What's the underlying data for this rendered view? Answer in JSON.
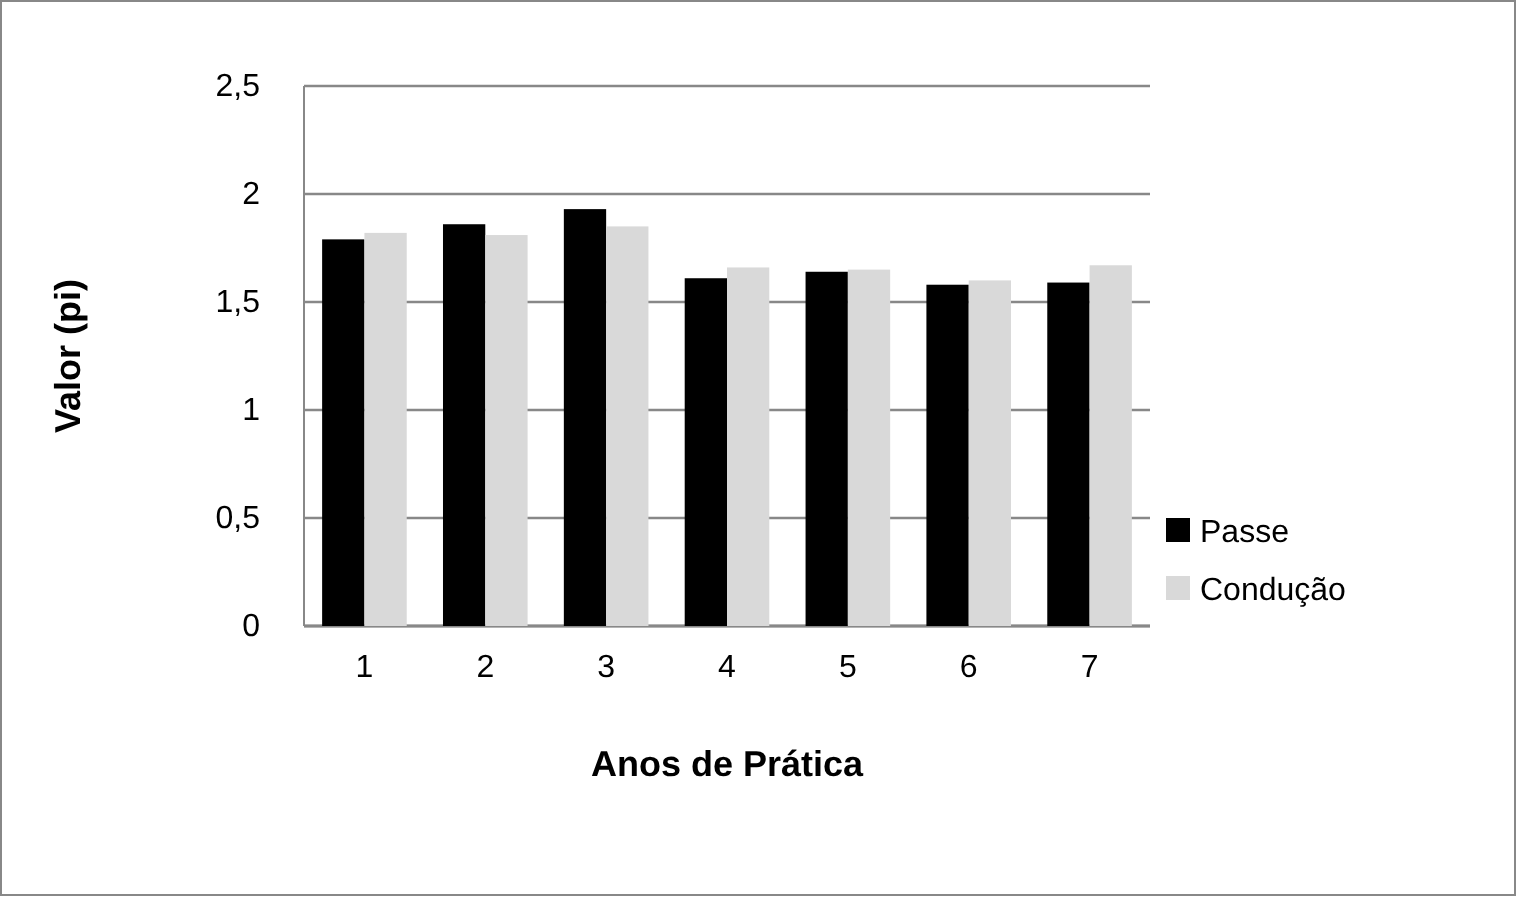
{
  "chart_data": {
    "type": "bar",
    "xlabel": "Anos de Prática",
    "ylabel": "Valor (pi)",
    "categories": [
      "1",
      "2",
      "3",
      "4",
      "5",
      "6",
      "7"
    ],
    "series": [
      {
        "name": "Passe",
        "color": "#000000",
        "values": [
          1.79,
          1.86,
          1.93,
          1.61,
          1.64,
          1.58,
          1.59
        ]
      },
      {
        "name": "Condução",
        "color": "#d9d9d9",
        "values": [
          1.82,
          1.81,
          1.85,
          1.66,
          1.65,
          1.6,
          1.67
        ]
      }
    ],
    "ylim": [
      0,
      2.5
    ],
    "yticks": [
      {
        "value": 0,
        "label": "0"
      },
      {
        "value": 0.5,
        "label": "0,5"
      },
      {
        "value": 1,
        "label": "1"
      },
      {
        "value": 1.5,
        "label": "1,5"
      },
      {
        "value": 2,
        "label": "2"
      },
      {
        "value": 2.5,
        "label": "2,5"
      }
    ],
    "grid": "y",
    "legend": "right"
  }
}
